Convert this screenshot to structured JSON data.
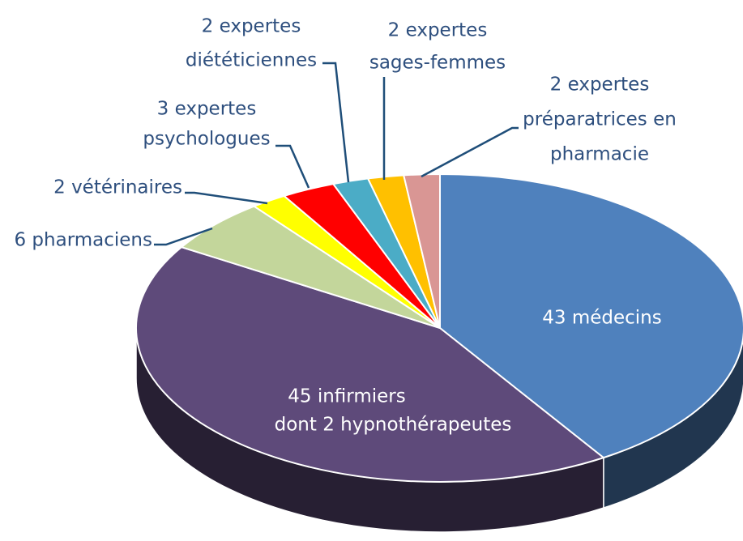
{
  "chart_data": {
    "type": "pie",
    "categories": [
      [
        "43 médecins"
      ],
      [
        "45 infirmiers",
        "dont 2 hypnothérapeutes"
      ],
      [
        "6 pharmaciens"
      ],
      [
        "2 vétérinaires"
      ],
      [
        "3 expertes",
        "psychologues"
      ],
      [
        "2 expertes",
        "diététiciennes"
      ],
      [
        "2 expertes",
        "sages-femmes"
      ],
      [
        "2 expertes",
        "préparatrices en",
        "pharmacie"
      ]
    ],
    "values": [
      43,
      45,
      6,
      2,
      3,
      2,
      2,
      2
    ],
    "colors": [
      "#4f81bd",
      "#5e4a7a",
      "#c3d69b",
      "#ffff00",
      "#ff0000",
      "#4bacc6",
      "#ffc000",
      "#d99694"
    ]
  }
}
